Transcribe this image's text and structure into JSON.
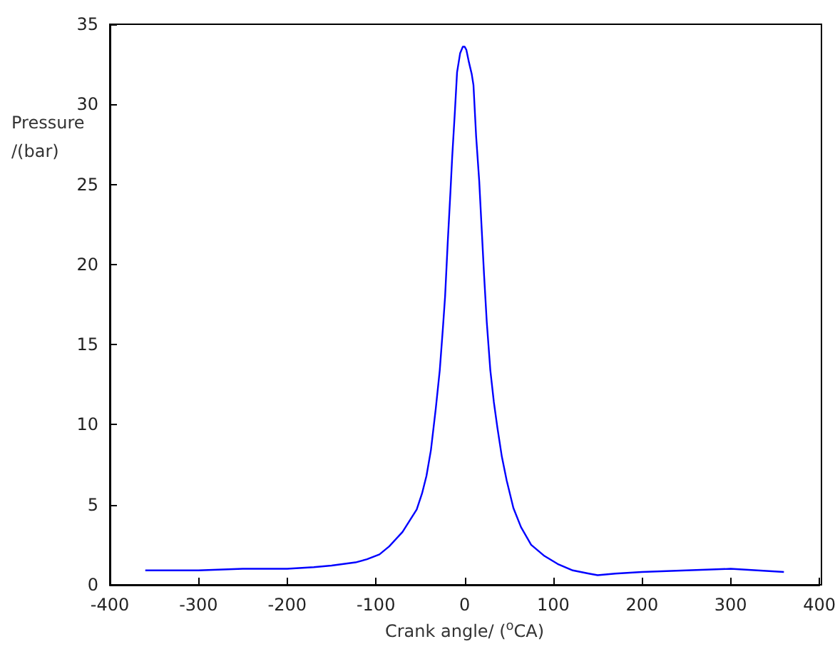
{
  "chart_data": {
    "type": "line",
    "xlabel": "Crank angle/ ($^{o}$CA)",
    "ylabel": "Pressure\n/(bar)",
    "x": [
      -360,
      -330,
      -300,
      -250,
      -200,
      -170,
      -150,
      -123,
      -110,
      -96,
      -85,
      -70,
      -62,
      -54,
      -48,
      -43,
      -38,
      -32.5,
      -28,
      -24.5,
      -22,
      -19,
      -16,
      -14,
      -11,
      -8.5,
      -5,
      -2,
      0,
      2,
      5,
      8,
      10,
      13,
      16.5,
      19,
      22,
      25,
      29,
      33,
      37,
      42,
      47.5,
      55,
      63.6,
      75,
      90,
      105,
      122,
      140,
      150,
      170,
      200,
      250,
      300,
      330,
      360
    ],
    "series": [
      {
        "color": "#0000ff",
        "values": [
          0.9,
          0.9,
          0.9,
          1.0,
          1.0,
          1.1,
          1.2,
          1.4,
          1.6,
          1.9,
          2.4,
          3.3,
          4.0,
          4.7,
          5.7,
          6.8,
          8.4,
          11.0,
          13.4,
          16.0,
          18.0,
          21.4,
          24.5,
          26.7,
          29.5,
          32.0,
          33.2,
          33.6,
          33.6,
          33.4,
          32.6,
          31.9,
          31.2,
          28.0,
          25.2,
          22.5,
          19.3,
          16.4,
          13.4,
          11.4,
          9.8,
          8.0,
          6.5,
          4.8,
          3.6,
          2.5,
          1.8,
          1.3,
          0.9,
          0.7,
          0.6,
          0.7,
          0.8,
          0.9,
          1.0,
          0.9,
          0.8
        ]
      }
    ],
    "xlim": [
      -400,
      400
    ],
    "xticks": [
      -400,
      -300,
      -200,
      -100,
      0,
      100,
      200,
      300,
      400
    ],
    "ylim": [
      0,
      35
    ],
    "yticks": [
      0,
      5,
      10,
      15,
      20,
      25,
      30,
      35
    ],
    "grid": false,
    "marker": "none",
    "line_style": "solid"
  }
}
